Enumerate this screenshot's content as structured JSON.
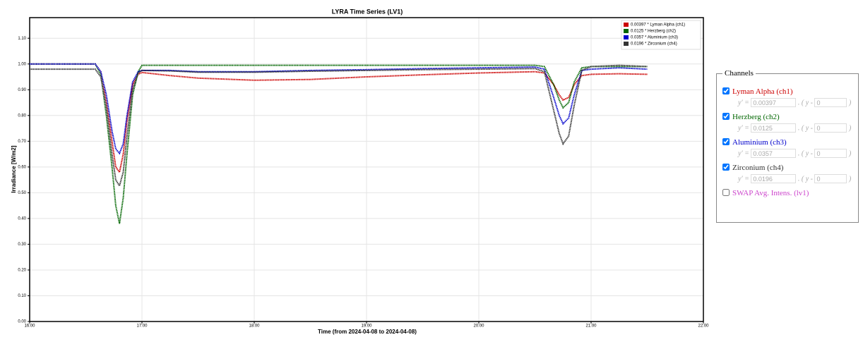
{
  "chart_data": {
    "type": "line",
    "title": "LYRA Time Series (LV1)",
    "x_label": "Time (from 2024-04-08 to 2024-04-08)",
    "y_label": "Irradiance [W/m2]",
    "x": [
      "16:00",
      "16:20",
      "16:35",
      "16:38",
      "16:41",
      "16:44",
      "16:46",
      "16:48",
      "16:50",
      "16:52",
      "16:55",
      "16:58",
      "17:00",
      "17:15",
      "17:30",
      "18:00",
      "18:30",
      "19:00",
      "19:30",
      "20:00",
      "20:30",
      "20:35",
      "20:40",
      "20:43",
      "20:45",
      "20:48",
      "20:51",
      "20:55",
      "21:00",
      "21:15",
      "21:30"
    ],
    "xlim": [
      "16:00",
      "22:00"
    ],
    "xticks": [
      "16:00",
      "17:00",
      "18:00",
      "19:00",
      "20:00",
      "21:00",
      "22:00"
    ],
    "ylim": [
      0,
      1.18
    ],
    "yticks": [
      {
        "value": 0,
        "label": "0.00"
      },
      {
        "value": 0.1,
        "label": "0.10"
      },
      {
        "value": 0.2,
        "label": "0.20"
      },
      {
        "value": 0.3,
        "label": "0.30"
      },
      {
        "value": 0.4,
        "label": "0.40"
      },
      {
        "value": 0.5,
        "label": "0.50"
      },
      {
        "value": 0.6,
        "label": "0.60"
      },
      {
        "value": 0.7,
        "label": "0.70"
      },
      {
        "value": 0.8,
        "label": "0.80"
      },
      {
        "value": 0.9,
        "label": "0.90"
      },
      {
        "value": 1,
        "label": "1.00"
      },
      {
        "value": 1.1,
        "label": "1.10"
      }
    ],
    "grid": true,
    "legend": "top-right",
    "series": [
      {
        "name": "0.00397 * Lyman Alpha (ch1)",
        "color": "#cc0000",
        "values": [
          1.0,
          1.0,
          1.0,
          0.97,
          0.85,
          0.7,
          0.6,
          0.58,
          0.65,
          0.78,
          0.92,
          0.96,
          0.967,
          0.955,
          0.945,
          0.937,
          0.94,
          0.95,
          0.958,
          0.965,
          0.97,
          0.965,
          0.92,
          0.88,
          0.86,
          0.87,
          0.92,
          0.955,
          0.96,
          0.962,
          0.96
        ]
      },
      {
        "name": "0.0125 * Herzberg (ch2)",
        "color": "#006600",
        "values": [
          1.0,
          1.0,
          1.0,
          0.96,
          0.8,
          0.6,
          0.45,
          0.38,
          0.48,
          0.65,
          0.88,
          0.97,
          0.995,
          0.995,
          0.995,
          0.995,
          0.995,
          0.995,
          0.995,
          0.995,
          0.995,
          0.99,
          0.92,
          0.86,
          0.83,
          0.85,
          0.93,
          0.985,
          0.99,
          0.99,
          0.99
        ]
      },
      {
        "name": "0.0357 * Aluminium (ch3)",
        "color": "#0000cc",
        "values": [
          1.0,
          1.0,
          1.0,
          0.97,
          0.88,
          0.74,
          0.67,
          0.653,
          0.69,
          0.8,
          0.93,
          0.97,
          0.975,
          0.975,
          0.97,
          0.97,
          0.975,
          0.978,
          0.982,
          0.985,
          0.988,
          0.98,
          0.87,
          0.8,
          0.768,
          0.79,
          0.88,
          0.975,
          0.98,
          0.985,
          0.98
        ]
      },
      {
        "name": "0.0196 * Zirconium (ch4)",
        "color": "#333333",
        "values": [
          0.98,
          0.98,
          0.98,
          0.95,
          0.83,
          0.65,
          0.55,
          0.527,
          0.58,
          0.72,
          0.9,
          0.965,
          0.975,
          0.973,
          0.968,
          0.968,
          0.972,
          0.975,
          0.978,
          0.98,
          0.982,
          0.97,
          0.82,
          0.73,
          0.69,
          0.72,
          0.84,
          0.975,
          0.99,
          0.995,
          0.99
        ]
      }
    ]
  },
  "panel": {
    "title": "Channels",
    "formula": [
      "y′ =",
      ". ( y -",
      ")"
    ],
    "channels": [
      {
        "label": "Lyman Alpha (ch1)",
        "color": "#cc0000",
        "checked": true,
        "factor": "0.00397",
        "offset": "0"
      },
      {
        "label": "Herzberg (ch2)",
        "color": "#006600",
        "checked": true,
        "factor": "0.0125",
        "offset": "0"
      },
      {
        "label": "Aluminium (ch3)",
        "color": "#0000cc",
        "checked": true,
        "factor": "0.0357",
        "offset": "0"
      },
      {
        "label": "Zirconium (ch4)",
        "color": "#333333",
        "checked": true,
        "factor": "0.0196",
        "offset": "0"
      },
      {
        "label": "SWAP Avg. Intens. (lv1)",
        "color": "#cc44cc",
        "checked": false
      }
    ]
  }
}
